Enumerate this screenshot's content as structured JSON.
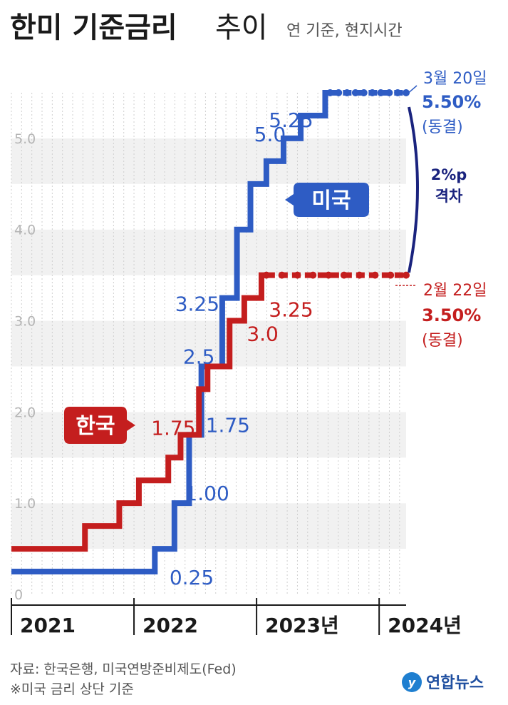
{
  "title": {
    "main": "한미 기준금리",
    "sub": "추이",
    "note": "연 기준, 현지시간"
  },
  "chart_data": {
    "type": "line",
    "step": true,
    "ylim": [
      0,
      5.5
    ],
    "yticks": [
      {
        "value": 0,
        "label": "0"
      },
      {
        "value": 1,
        "label": "1.0"
      },
      {
        "value": 2,
        "label": "2.0"
      },
      {
        "value": 3,
        "label": "3.0"
      },
      {
        "value": 4,
        "label": "4.0"
      },
      {
        "value": 5,
        "label": "5.0"
      }
    ],
    "xticks": [
      {
        "value": 2021,
        "label": "2021"
      },
      {
        "value": 2022,
        "label": "2022"
      },
      {
        "value": 2023,
        "label": "2023년"
      },
      {
        "value": 2024,
        "label": "2024년"
      }
    ],
    "xlim": [
      2021,
      2024.25
    ],
    "grid": true,
    "series": [
      {
        "name": "미국",
        "color": "#2e5cc4",
        "points": [
          {
            "x": 2021.0,
            "y": 0.25
          },
          {
            "x": 2022.17,
            "y": 0.5
          },
          {
            "x": 2022.33,
            "y": 1.0
          },
          {
            "x": 2022.45,
            "y": 1.75
          },
          {
            "x": 2022.55,
            "y": 2.5
          },
          {
            "x": 2022.72,
            "y": 3.25
          },
          {
            "x": 2022.84,
            "y": 4.0
          },
          {
            "x": 2022.95,
            "y": 4.5
          },
          {
            "x": 2023.08,
            "y": 4.75
          },
          {
            "x": 2023.22,
            "y": 5.0
          },
          {
            "x": 2023.36,
            "y": 5.25
          },
          {
            "x": 2023.56,
            "y": 5.5
          },
          {
            "x": 2024.22,
            "y": 5.5
          }
        ],
        "labels": [
          {
            "x": 2022.15,
            "y": 0.25,
            "text": "0.25"
          },
          {
            "x": 2022.38,
            "y": 1.0,
            "text": "1.00"
          },
          {
            "x": 2022.48,
            "y": 1.75,
            "text": "1.75"
          },
          {
            "x": 2022.4,
            "y": 2.5,
            "text": "2.5"
          },
          {
            "x": 2022.37,
            "y": 3.25,
            "text": "3.25"
          },
          {
            "x": 2022.98,
            "y": 5.0,
            "text": "5.0"
          },
          {
            "x": 2023.1,
            "y": 5.25,
            "text": "5.25"
          }
        ]
      },
      {
        "name": "한국",
        "color": "#c41e1e",
        "points": [
          {
            "x": 2021.0,
            "y": 0.5
          },
          {
            "x": 2021.6,
            "y": 0.75
          },
          {
            "x": 2021.88,
            "y": 1.0
          },
          {
            "x": 2022.04,
            "y": 1.25
          },
          {
            "x": 2022.28,
            "y": 1.5
          },
          {
            "x": 2022.38,
            "y": 1.75
          },
          {
            "x": 2022.53,
            "y": 2.25
          },
          {
            "x": 2022.6,
            "y": 2.5
          },
          {
            "x": 2022.78,
            "y": 3.0
          },
          {
            "x": 2022.9,
            "y": 3.25
          },
          {
            "x": 2023.04,
            "y": 3.5
          },
          {
            "x": 2024.22,
            "y": 3.5
          }
        ],
        "labels": [
          {
            "x": 2022.14,
            "y": 1.75,
            "text": "1.75"
          },
          {
            "x": 2022.92,
            "y": 3.0,
            "text": "3.0"
          },
          {
            "x": 2023.1,
            "y": 3.25,
            "text": "3.25"
          }
        ]
      }
    ]
  },
  "callouts": {
    "us": "미국",
    "kr": "한국"
  },
  "annotations": {
    "us_date": "3월 20일",
    "us_rate": "5.50%",
    "us_status": "(동결)",
    "kr_date": "2월 22일",
    "kr_rate": "3.50%",
    "kr_status": "(동결)",
    "gap_line1": "2%p",
    "gap_line2": "격차"
  },
  "footer": {
    "source": "자료: 한국은행, 미국연방준비제도(Fed)",
    "note": "※미국 금리 상단 기준",
    "logo": "연합뉴스"
  }
}
